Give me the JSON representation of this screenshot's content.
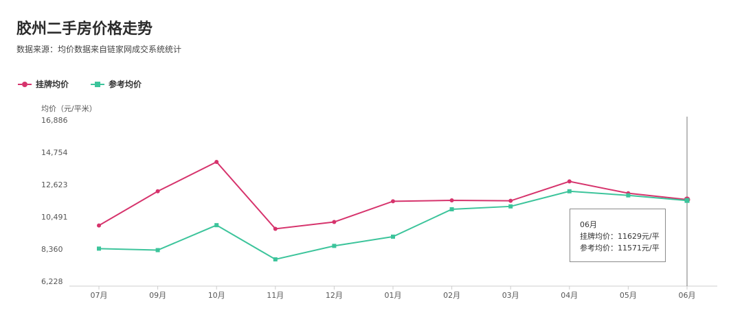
{
  "title": "胶州二手房价格走势",
  "subtitle": "数据来源：均价数据来自链家网成交系统统计",
  "colors": {
    "listing": "#d6336c",
    "reference": "#3cc49b",
    "axis": "#cccccc",
    "crosshair": "#777777"
  },
  "chart_data": {
    "type": "line",
    "title": "胶州二手房价格走势",
    "ylabel": "均价（元/平米）",
    "xlabel": "",
    "categories": [
      "07月",
      "09月",
      "10月",
      "11月",
      "12月",
      "01月",
      "02月",
      "03月",
      "04月",
      "05月",
      "06月"
    ],
    "y_ticks": [
      "16,886",
      "14,754",
      "12,623",
      "10,491",
      "8,360",
      "6,228"
    ],
    "ylim": [
      6228,
      16886
    ],
    "grid": false,
    "legend": "top-left",
    "series": [
      {
        "name": "挂牌均价",
        "marker": "circle",
        "values": [
          9920,
          12180,
          14120,
          9700,
          10150,
          11520,
          11580,
          11550,
          12830,
          12050,
          11629
        ]
      },
      {
        "name": "参考均价",
        "marker": "square",
        "values": [
          8390,
          8290,
          9940,
          7680,
          8570,
          9180,
          10990,
          11180,
          12180,
          11910,
          11571
        ]
      }
    ]
  },
  "tooltip": {
    "month": "06月",
    "listing_line": "挂牌均价：11629元/平",
    "reference_line": "参考均价：11571元/平"
  }
}
